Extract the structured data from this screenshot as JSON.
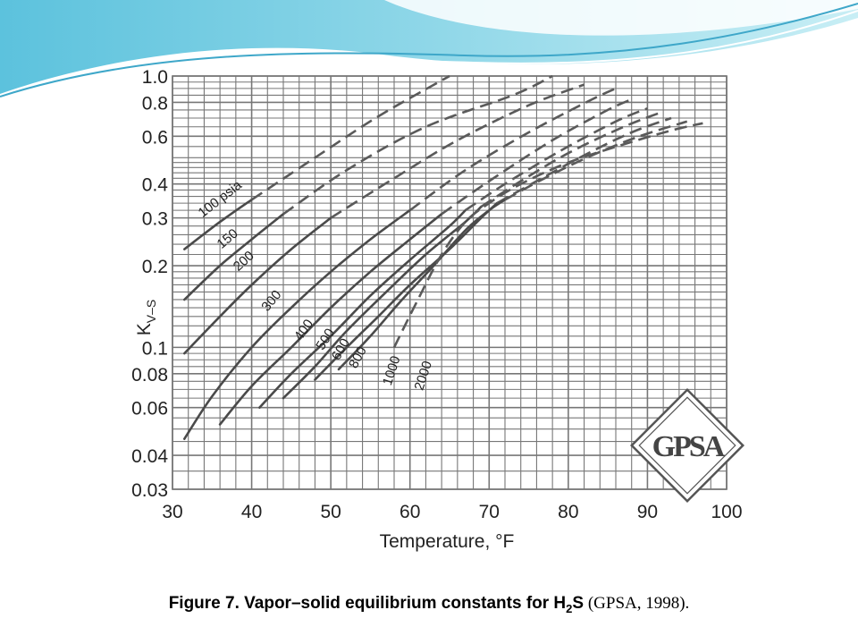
{
  "caption": {
    "main_prefix": "Figure 7. Vapor–solid equilibrium constants for H",
    "main_subscript": "2",
    "main_suffix": "S",
    "citation": " (GPSA, 1998)."
  },
  "logo_text": "GPSA",
  "chart_data": {
    "type": "line",
    "title": "",
    "xlabel": "Temperature, °F",
    "ylabel": "K",
    "ylabel_subscript": "V–S",
    "y_scale": "log",
    "xlim": [
      30,
      100
    ],
    "ylim": [
      0.03,
      1.0
    ],
    "grid": true,
    "x_ticks": [
      30,
      40,
      50,
      60,
      70,
      80,
      90,
      100
    ],
    "x_tick_labels": [
      "30",
      "40",
      "50",
      "60",
      "70",
      "80",
      "90",
      "100"
    ],
    "y_ticks": [
      0.03,
      0.04,
      0.06,
      0.08,
      0.1,
      0.2,
      0.3,
      0.4,
      0.6,
      0.8,
      1.0
    ],
    "y_tick_labels": [
      "0.03",
      "0.04",
      "0.06",
      "0.08",
      "0.1",
      "0.2",
      "0.3",
      "0.4",
      "0.6",
      "0.8",
      "1.0"
    ],
    "series": [
      {
        "name": "100 psia",
        "solid": [
          [
            31.5,
            0.23
          ],
          [
            36,
            0.29
          ],
          [
            40,
            0.35
          ]
        ],
        "dashed": [
          [
            40,
            0.35
          ],
          [
            48,
            0.5
          ],
          [
            56,
            0.71
          ],
          [
            65,
            1.0
          ]
        ]
      },
      {
        "name": "150",
        "solid": [
          [
            31.5,
            0.15
          ],
          [
            36,
            0.2
          ],
          [
            40,
            0.25
          ],
          [
            44,
            0.31
          ]
        ],
        "dashed": [
          [
            44,
            0.31
          ],
          [
            52,
            0.45
          ],
          [
            62,
            0.65
          ],
          [
            73,
            0.85
          ],
          [
            78,
            1.0
          ]
        ]
      },
      {
        "name": "200",
        "solid": [
          [
            31.5,
            0.095
          ],
          [
            36,
            0.13
          ],
          [
            40,
            0.17
          ],
          [
            45,
            0.23
          ],
          [
            50,
            0.3
          ]
        ],
        "dashed": [
          [
            50,
            0.3
          ],
          [
            58,
            0.42
          ],
          [
            66,
            0.58
          ],
          [
            75,
            0.78
          ],
          [
            82,
            0.93
          ]
        ]
      },
      {
        "name": "300",
        "solid": [
          [
            31.5,
            0.046
          ],
          [
            35,
            0.066
          ],
          [
            40,
            0.1
          ],
          [
            45,
            0.14
          ],
          [
            50,
            0.19
          ],
          [
            55,
            0.25
          ],
          [
            60,
            0.32
          ]
        ],
        "dashed": [
          [
            60,
            0.32
          ],
          [
            67,
            0.45
          ],
          [
            75,
            0.62
          ],
          [
            83,
            0.82
          ],
          [
            86,
            0.9
          ]
        ]
      },
      {
        "name": "400",
        "solid": [
          [
            36,
            0.052
          ],
          [
            40,
            0.072
          ],
          [
            45,
            0.1
          ],
          [
            50,
            0.14
          ],
          [
            55,
            0.19
          ],
          [
            60,
            0.25
          ],
          [
            64,
            0.31
          ]
        ],
        "dashed": [
          [
            64,
            0.31
          ],
          [
            70,
            0.41
          ],
          [
            78,
            0.58
          ],
          [
            85,
            0.75
          ],
          [
            88,
            0.82
          ]
        ]
      },
      {
        "name": "500",
        "solid": [
          [
            41,
            0.06
          ],
          [
            45,
            0.08
          ],
          [
            50,
            0.11
          ],
          [
            55,
            0.155
          ],
          [
            60,
            0.21
          ],
          [
            65,
            0.28
          ],
          [
            67,
            0.32
          ]
        ],
        "dashed": [
          [
            67,
            0.32
          ],
          [
            72,
            0.4
          ],
          [
            79,
            0.53
          ],
          [
            86,
            0.68
          ],
          [
            90,
            0.76
          ]
        ]
      },
      {
        "name": "600",
        "solid": [
          [
            44,
            0.065
          ],
          [
            48,
            0.085
          ],
          [
            52,
            0.115
          ],
          [
            57,
            0.16
          ],
          [
            62,
            0.22
          ],
          [
            67,
            0.29
          ],
          [
            69,
            0.33
          ]
        ],
        "dashed": [
          [
            69,
            0.33
          ],
          [
            74,
            0.41
          ],
          [
            80,
            0.52
          ],
          [
            87,
            0.65
          ],
          [
            92,
            0.74
          ]
        ]
      },
      {
        "name": "800",
        "solid": [
          [
            48,
            0.076
          ],
          [
            52,
            0.1
          ],
          [
            56,
            0.13
          ],
          [
            60,
            0.17
          ],
          [
            65,
            0.23
          ],
          [
            69,
            0.3
          ],
          [
            71,
            0.34
          ]
        ],
        "dashed": [
          [
            71,
            0.34
          ],
          [
            76,
            0.41
          ],
          [
            82,
            0.51
          ],
          [
            88,
            0.62
          ],
          [
            93,
            0.7
          ]
        ]
      },
      {
        "name": "1000",
        "solid": [
          [
            51,
            0.083
          ],
          [
            55,
            0.11
          ],
          [
            59,
            0.15
          ],
          [
            63,
            0.2
          ],
          [
            67,
            0.27
          ],
          [
            70,
            0.32
          ],
          [
            72,
            0.35
          ]
        ],
        "dashed": [
          [
            72,
            0.35
          ],
          [
            77,
            0.42
          ],
          [
            83,
            0.51
          ],
          [
            89,
            0.6
          ],
          [
            95,
            0.68
          ]
        ]
      },
      {
        "name": "2000",
        "solid": [],
        "dashed": [
          [
            58,
            0.1
          ],
          [
            61,
            0.15
          ],
          [
            64,
            0.22
          ],
          [
            67,
            0.29
          ],
          [
            70,
            0.34
          ],
          [
            74,
            0.4
          ],
          [
            80,
            0.48
          ],
          [
            87,
            0.56
          ],
          [
            93,
            0.63
          ],
          [
            97,
            0.67
          ]
        ]
      }
    ]
  }
}
